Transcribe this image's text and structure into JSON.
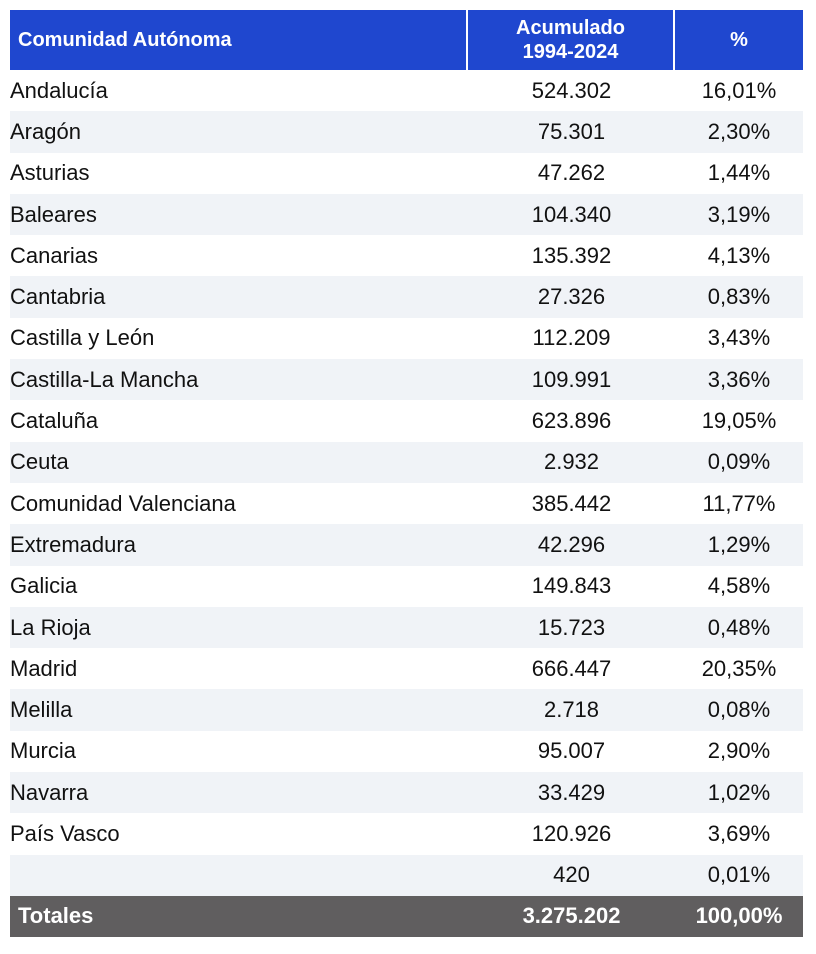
{
  "header": {
    "col1": "Comunidad Autónoma",
    "col2_line1": "Acumulado",
    "col2_line2": "1994-2024",
    "col3": "%"
  },
  "rows": [
    {
      "name": "Andalucía",
      "value": "524.302",
      "pct": "16,01%"
    },
    {
      "name": "Aragón",
      "value": "75.301",
      "pct": "2,30%"
    },
    {
      "name": "Asturias",
      "value": "47.262",
      "pct": "1,44%"
    },
    {
      "name": "Baleares",
      "value": "104.340",
      "pct": "3,19%"
    },
    {
      "name": "Canarias",
      "value": "135.392",
      "pct": "4,13%"
    },
    {
      "name": "Cantabria",
      "value": "27.326",
      "pct": "0,83%"
    },
    {
      "name": "Castilla y León",
      "value": "112.209",
      "pct": "3,43%"
    },
    {
      "name": "Castilla-La Mancha",
      "value": "109.991",
      "pct": "3,36%"
    },
    {
      "name": "Cataluña",
      "value": "623.896",
      "pct": "19,05%"
    },
    {
      "name": "Ceuta",
      "value": "2.932",
      "pct": "0,09%"
    },
    {
      "name": "Comunidad Valenciana",
      "value": "385.442",
      "pct": "11,77%"
    },
    {
      "name": "Extremadura",
      "value": "42.296",
      "pct": "1,29%"
    },
    {
      "name": "Galicia",
      "value": "149.843",
      "pct": "4,58%"
    },
    {
      "name": "La Rioja",
      "value": "15.723",
      "pct": "0,48%"
    },
    {
      "name": "Madrid",
      "value": "666.447",
      "pct": "20,35%"
    },
    {
      "name": "Melilla",
      "value": "2.718",
      "pct": "0,08%"
    },
    {
      "name": "Murcia",
      "value": "95.007",
      "pct": "2,90%"
    },
    {
      "name": "Navarra",
      "value": "33.429",
      "pct": "1,02%"
    },
    {
      "name": "País Vasco",
      "value": "120.926",
      "pct": "3,69%"
    },
    {
      "name": "",
      "value": "420",
      "pct": "0,01%"
    }
  ],
  "totals": {
    "label": "Totales",
    "value": "3.275.202",
    "pct": "100,00%"
  },
  "colors": {
    "header_bg": "#1f47cf",
    "totals_bg": "#605e5f",
    "stripe": "#f0f3f7"
  }
}
